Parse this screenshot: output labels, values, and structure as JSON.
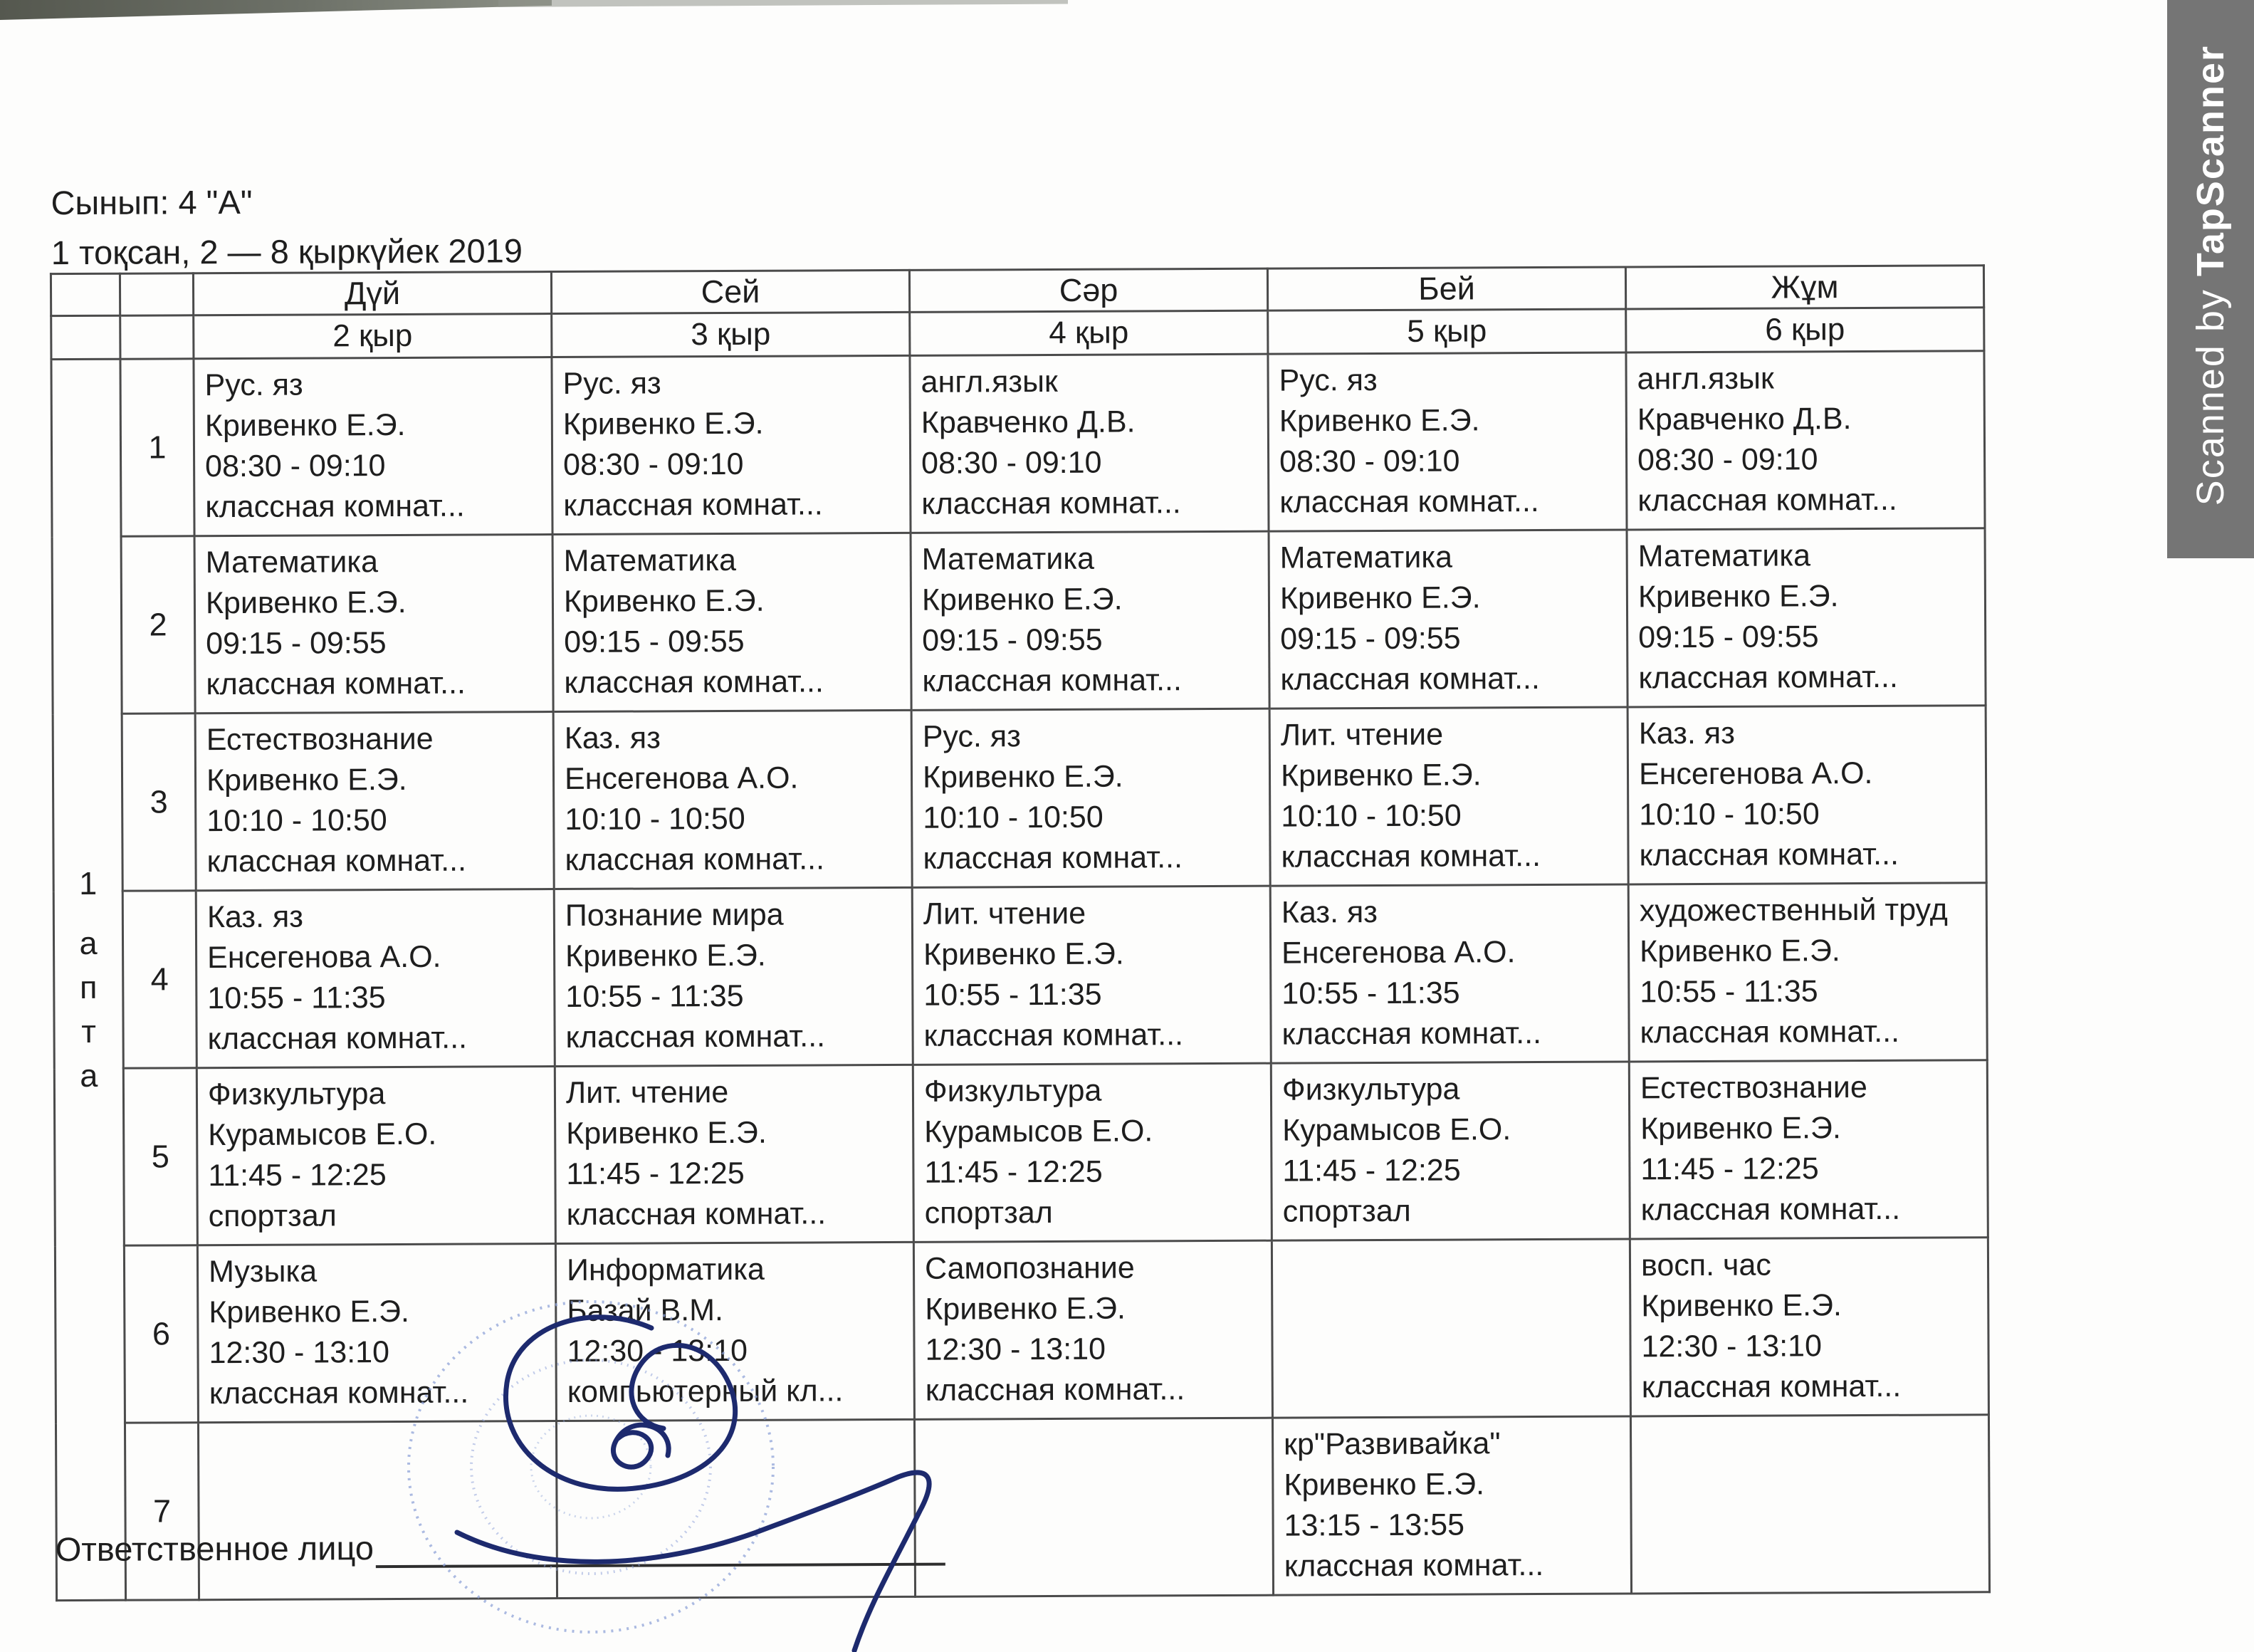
{
  "header": {
    "class_line": "Сынып: 4 \"А\"",
    "period_line": "1 тоқсан, 2 — 8 қыркүйек 2019"
  },
  "table": {
    "week_label": "1 апта",
    "days": [
      {
        "name": "Дүй",
        "date": "2 қыр"
      },
      {
        "name": "Сей",
        "date": "3 қыр"
      },
      {
        "name": "Сәр",
        "date": "4 қыр"
      },
      {
        "name": "Бей",
        "date": "5 қыр"
      },
      {
        "name": "Жұм",
        "date": "6 қыр"
      }
    ],
    "rows": [
      {
        "num": "1",
        "cells": [
          {
            "subject": "Рус. яз",
            "teacher": "Кривенко Е.Э.",
            "time": "08:30 - 09:10",
            "room": "классная комнат..."
          },
          {
            "subject": "Рус. яз",
            "teacher": "Кривенко Е.Э.",
            "time": "08:30 - 09:10",
            "room": "классная комнат..."
          },
          {
            "subject": "англ.язык",
            "teacher": "Кравченко Д.В.",
            "time": "08:30 - 09:10",
            "room": "классная комнат..."
          },
          {
            "subject": "Рус. яз",
            "teacher": "Кривенко Е.Э.",
            "time": "08:30 - 09:10",
            "room": "классная комнат..."
          },
          {
            "subject": "англ.язык",
            "teacher": "Кравченко Д.В.",
            "time": "08:30 - 09:10",
            "room": "классная комнат..."
          }
        ]
      },
      {
        "num": "2",
        "cells": [
          {
            "subject": "Математика",
            "teacher": "Кривенко Е.Э.",
            "time": "09:15 - 09:55",
            "room": "классная комнат..."
          },
          {
            "subject": "Математика",
            "teacher": "Кривенко Е.Э.",
            "time": "09:15 - 09:55",
            "room": "классная комнат..."
          },
          {
            "subject": "Математика",
            "teacher": "Кривенко Е.Э.",
            "time": "09:15 - 09:55",
            "room": "классная комнат..."
          },
          {
            "subject": "Математика",
            "teacher": "Кривенко Е.Э.",
            "time": "09:15 - 09:55",
            "room": "классная комнат..."
          },
          {
            "subject": "Математика",
            "teacher": "Кривенко Е.Э.",
            "time": "09:15 - 09:55",
            "room": "классная комнат..."
          }
        ]
      },
      {
        "num": "3",
        "cells": [
          {
            "subject": "Естествознание",
            "teacher": "Кривенко Е.Э.",
            "time": "10:10 - 10:50",
            "room": "классная комнат..."
          },
          {
            "subject": "Каз. яз",
            "teacher": "Енсегенова А.О.",
            "time": "10:10 - 10:50",
            "room": "классная комнат..."
          },
          {
            "subject": "Рус. яз",
            "teacher": "Кривенко Е.Э.",
            "time": "10:10 - 10:50",
            "room": "классная комнат..."
          },
          {
            "subject": "Лит. чтение",
            "teacher": "Кривенко Е.Э.",
            "time": "10:10 - 10:50",
            "room": "классная комнат..."
          },
          {
            "subject": "Каз. яз",
            "teacher": "Енсегенова А.О.",
            "time": "10:10 - 10:50",
            "room": "классная комнат..."
          }
        ]
      },
      {
        "num": "4",
        "cells": [
          {
            "subject": "Каз. яз",
            "teacher": "Енсегенова А.О.",
            "time": "10:55 - 11:35",
            "room": "классная комнат..."
          },
          {
            "subject": "Познание мира",
            "teacher": "Кривенко Е.Э.",
            "time": "10:55 - 11:35",
            "room": "классная комнат..."
          },
          {
            "subject": "Лит. чтение",
            "teacher": "Кривенко Е.Э.",
            "time": "10:55 - 11:35",
            "room": "классная комнат..."
          },
          {
            "subject": "Каз. яз",
            "teacher": "Енсегенова А.О.",
            "time": "10:55 - 11:35",
            "room": "классная комнат..."
          },
          {
            "subject": "художественный труд",
            "teacher": "Кривенко Е.Э.",
            "time": "10:55 - 11:35",
            "room": "классная комнат..."
          }
        ]
      },
      {
        "num": "5",
        "cells": [
          {
            "subject": "Физкультура",
            "teacher": "Курамысов Е.О.",
            "time": "11:45 - 12:25",
            "room": "спортзал"
          },
          {
            "subject": "Лит. чтение",
            "teacher": "Кривенко Е.Э.",
            "time": "11:45 - 12:25",
            "room": "классная комнат..."
          },
          {
            "subject": "Физкультура",
            "teacher": "Курамысов Е.О.",
            "time": "11:45 - 12:25",
            "room": "спортзал"
          },
          {
            "subject": "Физкультура",
            "teacher": "Курамысов Е.О.",
            "time": "11:45 - 12:25",
            "room": "спортзал"
          },
          {
            "subject": "Естествознание",
            "teacher": "Кривенко Е.Э.",
            "time": "11:45 - 12:25",
            "room": "классная комнат..."
          }
        ]
      },
      {
        "num": "6",
        "cells": [
          {
            "subject": "Музыка",
            "teacher": "Кривенко Е.Э.",
            "time": "12:30 - 13:10",
            "room": "классная комнат..."
          },
          {
            "subject": "Информатика",
            "teacher": "Базай В.М.",
            "time": "12:30 - 13:10",
            "room": "компьютерный кл..."
          },
          {
            "subject": "Самопознание",
            "teacher": "Кривенко Е.Э.",
            "time": "12:30 - 13:10",
            "room": "классная комнат..."
          },
          null,
          {
            "subject": "восп. час",
            "teacher": "Кривенко Е.Э.",
            "time": "12:30 - 13:10",
            "room": "классная комнат..."
          }
        ]
      },
      {
        "num": "7",
        "cells": [
          null,
          null,
          null,
          {
            "subject": "кр\"Развивайка\"",
            "teacher": "Кривенко Е.Э.",
            "time": "13:15 - 13:55",
            "room": "классная комнат..."
          },
          null
        ]
      }
    ]
  },
  "footer": {
    "responsible_label": "Ответственное лицо"
  },
  "watermark": {
    "prefix": "Scanned by ",
    "brand": "TapScanner"
  }
}
